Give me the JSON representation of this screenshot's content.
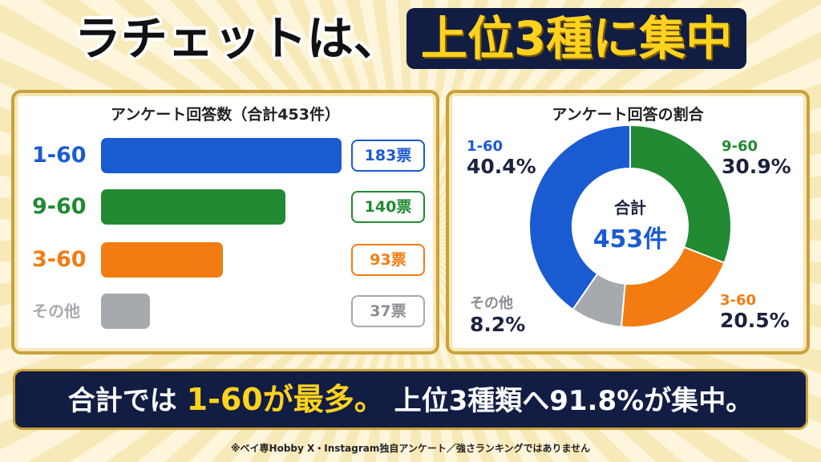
{
  "header": {
    "title_part1": "ラチェットは、",
    "title_part2": "上位3種に集中"
  },
  "colors": {
    "blue": "#1a5bd1",
    "green": "#218a32",
    "orange": "#f27c12",
    "gray": "#a6a9ad",
    "navy": "#121d44",
    "gold": "#ffd21e"
  },
  "bar_panel": {
    "title": "アンケート回答数（合計453件）"
  },
  "donut_panel": {
    "title": "アンケート回答の割合",
    "center_label": "合計",
    "center_value": "453件"
  },
  "chart_data": [
    {
      "type": "bar",
      "orientation": "horizontal",
      "title": "アンケート回答数（合計453件）",
      "categories": [
        "1-60",
        "9-60",
        "3-60",
        "その他"
      ],
      "values": [
        183,
        140,
        93,
        37
      ],
      "value_labels": [
        "183票",
        "140票",
        "93票",
        "37票"
      ],
      "colors": [
        "#1a5bd1",
        "#218a32",
        "#f27c12",
        "#a6a9ad"
      ]
    },
    {
      "type": "pie",
      "variant": "donut",
      "title": "アンケート回答の割合",
      "categories": [
        "1-60",
        "9-60",
        "3-60",
        "その他"
      ],
      "values": [
        40.4,
        30.9,
        20.5,
        8.2
      ],
      "value_labels": [
        "40.4%",
        "30.9%",
        "20.5%",
        "8.2%"
      ],
      "colors": [
        "#1a5bd1",
        "#218a32",
        "#f27c12",
        "#a6a9ad"
      ],
      "center_text": [
        "合計",
        "453件"
      ]
    }
  ],
  "footer": {
    "text_before": "合計では",
    "highlight": "1-60が最多。",
    "text_after": "上位3種類へ91.8%が集中。"
  },
  "note": "※ベイ専Hobby X・Instagram独自アンケート／強さランキングではありません"
}
